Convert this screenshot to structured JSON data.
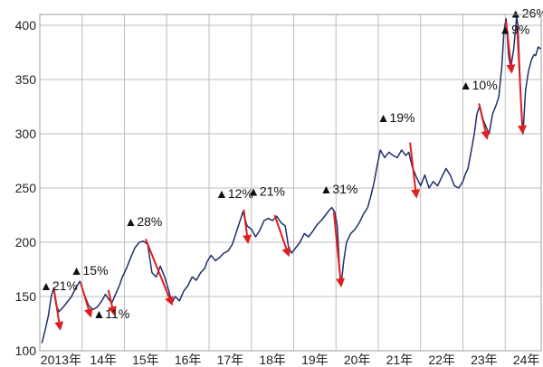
{
  "colors": {
    "series": "#1f2f6b",
    "arrow": "#e01e1e",
    "grid": "#bdbdbd",
    "frame": "#9e9e9e",
    "text": "#222222"
  },
  "chart_data": {
    "type": "line",
    "title": "",
    "xlabel": "",
    "ylabel": "",
    "grid": true,
    "legend": "none",
    "xlim": [
      2013.0,
      2024.85
    ],
    "ylim": [
      100,
      410
    ],
    "y_ticks": [
      100,
      150,
      200,
      250,
      300,
      350,
      400
    ],
    "x_ticks": [
      {
        "value": 2013.0,
        "label": "2013年"
      },
      {
        "value": 2014.0,
        "label": "14年"
      },
      {
        "value": 2015.0,
        "label": "15年"
      },
      {
        "value": 2016.0,
        "label": "16年"
      },
      {
        "value": 2017.0,
        "label": "17年"
      },
      {
        "value": 2018.0,
        "label": "18年"
      },
      {
        "value": 2019.0,
        "label": "19年"
      },
      {
        "value": 2020.0,
        "label": "20年"
      },
      {
        "value": 2021.0,
        "label": "21年"
      },
      {
        "value": 2022.0,
        "label": "22年"
      },
      {
        "value": 2023.0,
        "label": "23年"
      },
      {
        "value": 2024.0,
        "label": "24年"
      }
    ],
    "series": [
      {
        "points": [
          [
            2013.05,
            107
          ],
          [
            2013.12,
            118
          ],
          [
            2013.2,
            132
          ],
          [
            2013.27,
            150
          ],
          [
            2013.33,
            158
          ],
          [
            2013.38,
            143
          ],
          [
            2013.45,
            136
          ],
          [
            2013.55,
            140
          ],
          [
            2013.65,
            145
          ],
          [
            2013.75,
            150
          ],
          [
            2013.85,
            158
          ],
          [
            2013.95,
            164
          ],
          [
            2014.05,
            152
          ],
          [
            2014.15,
            142
          ],
          [
            2014.25,
            138
          ],
          [
            2014.35,
            140
          ],
          [
            2014.45,
            145
          ],
          [
            2014.55,
            152
          ],
          [
            2014.62,
            148
          ],
          [
            2014.7,
            144
          ],
          [
            2014.8,
            153
          ],
          [
            2014.88,
            160
          ],
          [
            2014.95,
            168
          ],
          [
            2015.05,
            176
          ],
          [
            2015.15,
            186
          ],
          [
            2015.25,
            195
          ],
          [
            2015.35,
            200
          ],
          [
            2015.45,
            201
          ],
          [
            2015.55,
            198
          ],
          [
            2015.65,
            172
          ],
          [
            2015.75,
            168
          ],
          [
            2015.85,
            178
          ],
          [
            2015.95,
            168
          ],
          [
            2016.05,
            155
          ],
          [
            2016.12,
            144
          ],
          [
            2016.2,
            150
          ],
          [
            2016.3,
            146
          ],
          [
            2016.4,
            155
          ],
          [
            2016.5,
            160
          ],
          [
            2016.6,
            168
          ],
          [
            2016.7,
            165
          ],
          [
            2016.8,
            172
          ],
          [
            2016.9,
            176
          ],
          [
            2016.95,
            182
          ],
          [
            2017.05,
            188
          ],
          [
            2017.15,
            183
          ],
          [
            2017.25,
            186
          ],
          [
            2017.35,
            190
          ],
          [
            2017.45,
            192
          ],
          [
            2017.55,
            198
          ],
          [
            2017.65,
            210
          ],
          [
            2017.75,
            222
          ],
          [
            2017.8,
            228
          ],
          [
            2017.9,
            215
          ],
          [
            2018.0,
            212
          ],
          [
            2018.1,
            205
          ],
          [
            2018.2,
            211
          ],
          [
            2018.3,
            220
          ],
          [
            2018.4,
            222
          ],
          [
            2018.5,
            220
          ],
          [
            2018.6,
            224
          ],
          [
            2018.7,
            218
          ],
          [
            2018.8,
            215
          ],
          [
            2018.88,
            195
          ],
          [
            2018.95,
            190
          ],
          [
            2019.05,
            195
          ],
          [
            2019.15,
            200
          ],
          [
            2019.25,
            208
          ],
          [
            2019.35,
            205
          ],
          [
            2019.45,
            210
          ],
          [
            2019.55,
            216
          ],
          [
            2019.65,
            220
          ],
          [
            2019.75,
            225
          ],
          [
            2019.85,
            230
          ],
          [
            2019.9,
            232
          ],
          [
            2019.97,
            228
          ],
          [
            2020.03,
            215
          ],
          [
            2020.08,
            178
          ],
          [
            2020.12,
            160
          ],
          [
            2020.18,
            182
          ],
          [
            2020.25,
            200
          ],
          [
            2020.35,
            208
          ],
          [
            2020.45,
            212
          ],
          [
            2020.55,
            218
          ],
          [
            2020.65,
            226
          ],
          [
            2020.75,
            232
          ],
          [
            2020.82,
            242
          ],
          [
            2020.9,
            255
          ],
          [
            2020.97,
            270
          ],
          [
            2021.05,
            285
          ],
          [
            2021.15,
            278
          ],
          [
            2021.25,
            283
          ],
          [
            2021.35,
            280
          ],
          [
            2021.45,
            278
          ],
          [
            2021.55,
            285
          ],
          [
            2021.65,
            280
          ],
          [
            2021.72,
            283
          ],
          [
            2021.8,
            270
          ],
          [
            2021.9,
            260
          ],
          [
            2022.0,
            252
          ],
          [
            2022.1,
            262
          ],
          [
            2022.2,
            250
          ],
          [
            2022.3,
            256
          ],
          [
            2022.4,
            252
          ],
          [
            2022.5,
            260
          ],
          [
            2022.6,
            268
          ],
          [
            2022.7,
            262
          ],
          [
            2022.8,
            252
          ],
          [
            2022.9,
            250
          ],
          [
            2023.0,
            256
          ],
          [
            2023.05,
            262
          ],
          [
            2023.12,
            268
          ],
          [
            2023.2,
            285
          ],
          [
            2023.27,
            300
          ],
          [
            2023.33,
            318
          ],
          [
            2023.4,
            326
          ],
          [
            2023.47,
            314
          ],
          [
            2023.55,
            306
          ],
          [
            2023.62,
            300
          ],
          [
            2023.7,
            318
          ],
          [
            2023.78,
            326
          ],
          [
            2023.85,
            334
          ],
          [
            2023.92,
            362
          ],
          [
            2023.97,
            395
          ],
          [
            2024.02,
            406
          ],
          [
            2024.08,
            372
          ],
          [
            2024.13,
            360
          ],
          [
            2024.2,
            378
          ],
          [
            2024.27,
            408
          ],
          [
            2024.3,
            400
          ],
          [
            2024.37,
            330
          ],
          [
            2024.42,
            300
          ],
          [
            2024.48,
            340
          ],
          [
            2024.55,
            358
          ],
          [
            2024.62,
            368
          ],
          [
            2024.68,
            373
          ],
          [
            2024.72,
            372
          ],
          [
            2024.78,
            380
          ],
          [
            2024.85,
            378
          ]
        ]
      }
    ],
    "annotations": [
      {
        "text": "▲21%",
        "label_x": 2013.0,
        "label_y": 156,
        "arrow_from": [
          2013.33,
          158
        ],
        "arrow_to": [
          2013.48,
          120
        ]
      },
      {
        "text": "▲15%",
        "label_x": 2013.72,
        "label_y": 170,
        "arrow_from": [
          2013.97,
          162
        ],
        "arrow_to": [
          2014.2,
          132
        ]
      },
      {
        "text": "▲11%",
        "label_x": 2014.25,
        "label_y": 130,
        "arrow_from": [
          2014.62,
          156
        ],
        "arrow_to": [
          2014.75,
          134
        ]
      },
      {
        "text": "▲28%",
        "label_x": 2015.0,
        "label_y": 215,
        "arrow_from": [
          2015.5,
          203
        ],
        "arrow_to": [
          2016.12,
          143
        ]
      },
      {
        "text": "▲12%",
        "label_x": 2017.15,
        "label_y": 241,
        "arrow_from": [
          2017.82,
          230
        ],
        "arrow_to": [
          2017.92,
          200
        ]
      },
      {
        "text": "▲21%",
        "label_x": 2017.9,
        "label_y": 243,
        "arrow_from": [
          2018.55,
          225
        ],
        "arrow_to": [
          2018.88,
          188
        ]
      },
      {
        "text": "▲31%",
        "label_x": 2019.62,
        "label_y": 245,
        "arrow_from": [
          2019.95,
          228
        ],
        "arrow_to": [
          2020.12,
          160
        ]
      },
      {
        "text": "▲19%",
        "label_x": 2020.97,
        "label_y": 311,
        "arrow_from": [
          2021.75,
          292
        ],
        "arrow_to": [
          2021.9,
          242
        ]
      },
      {
        "text": "▲10%",
        "label_x": 2022.92,
        "label_y": 341,
        "arrow_from": [
          2023.38,
          328
        ],
        "arrow_to": [
          2023.57,
          296
        ]
      },
      {
        "text": "▲9%",
        "label_x": 2023.85,
        "label_y": 392,
        "arrow_from": [
          2024.02,
          404
        ],
        "arrow_to": [
          2024.15,
          357
        ]
      },
      {
        "text": "▲26%",
        "label_x": 2024.1,
        "label_y": 407,
        "arrow_from": [
          2024.28,
          400
        ],
        "arrow_to": [
          2024.41,
          301
        ]
      }
    ]
  }
}
